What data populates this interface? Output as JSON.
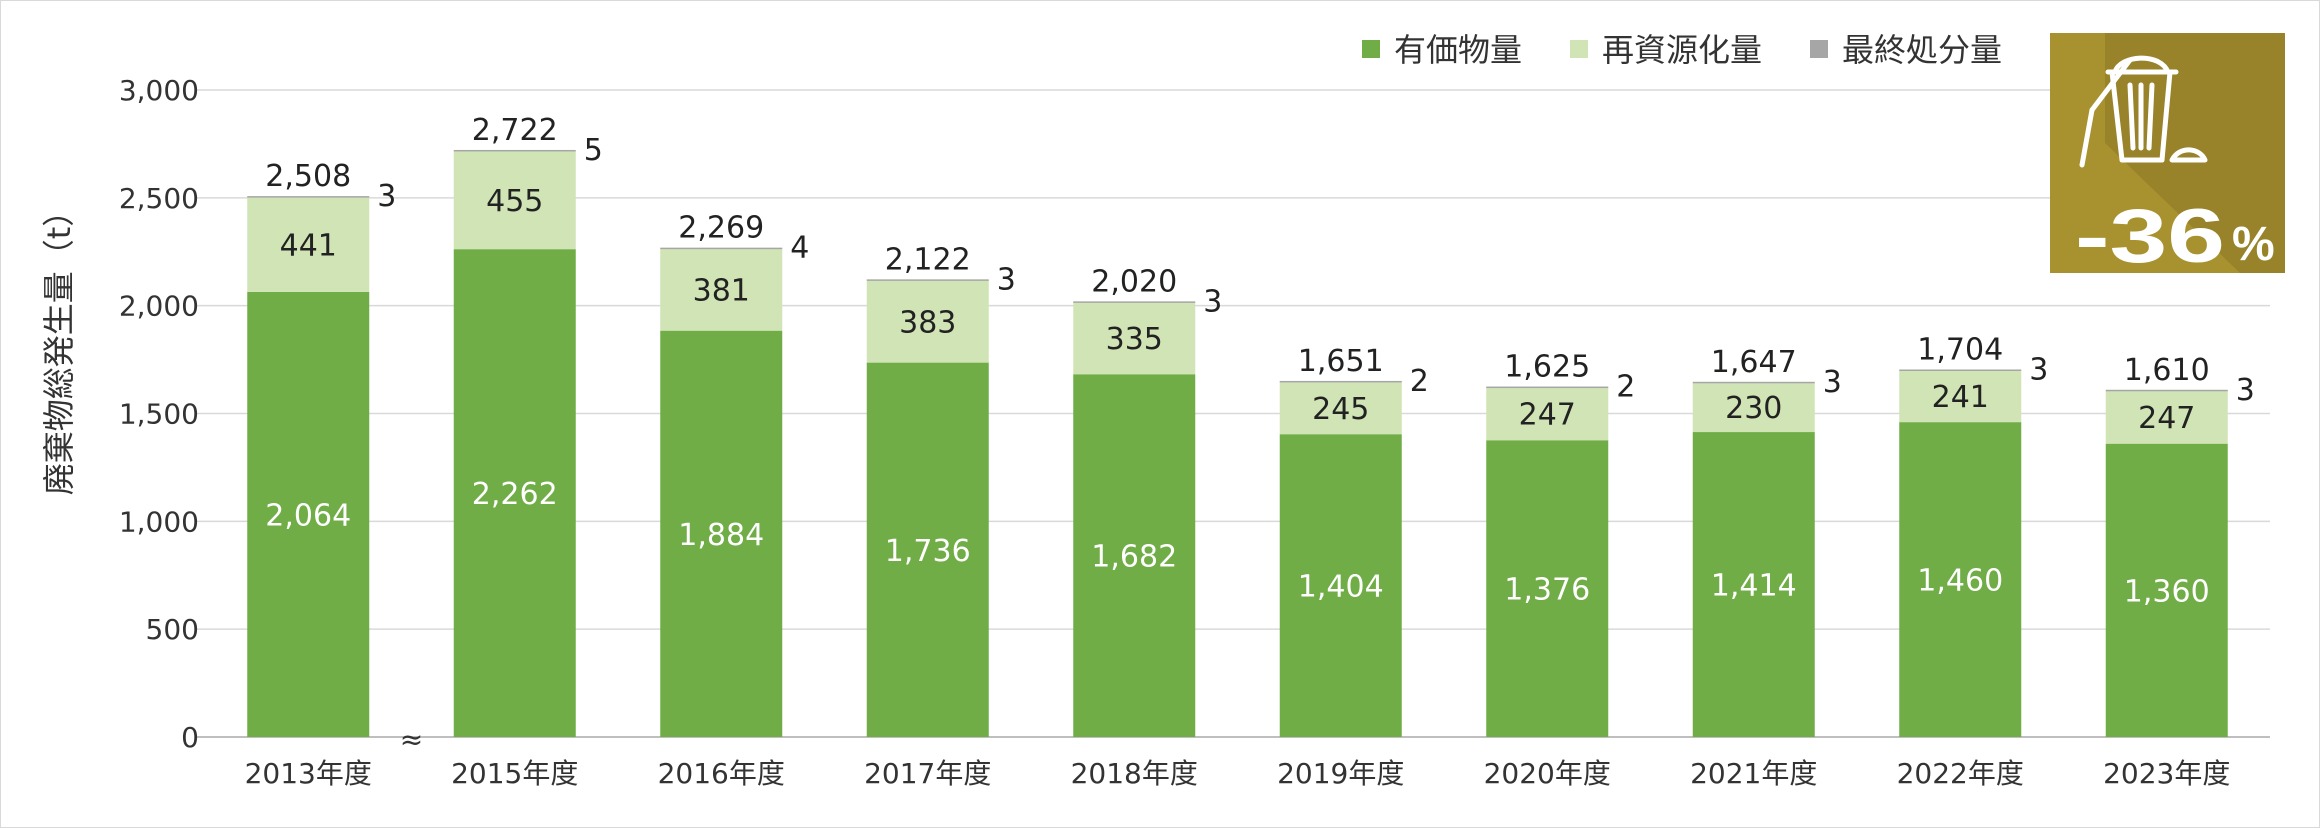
{
  "chart_data": {
    "type": "bar",
    "stacked": true,
    "ylabel": "廃棄物総発生量（t）",
    "ylim": [
      0,
      3000
    ],
    "yticks": [
      0,
      500,
      1000,
      1500,
      2000,
      2500,
      3000
    ],
    "ytick_labels": [
      "0",
      "500",
      "1,000",
      "1,500",
      "2,000",
      "2,500",
      "3,000"
    ],
    "categories": [
      "2013年度",
      "2015年度",
      "2016年度",
      "2017年度",
      "2018年度",
      "2019年度",
      "2020年度",
      "2021年度",
      "2022年度",
      "2023年度"
    ],
    "series": [
      {
        "name": "有価物量",
        "color": "#70ad47",
        "values": [
          2064,
          2262,
          1884,
          1736,
          1682,
          1404,
          1376,
          1414,
          1460,
          1360
        ],
        "labels": [
          "2,064",
          "2,262",
          "1,884",
          "1,736",
          "1,682",
          "1,404",
          "1,376",
          "1,414",
          "1,460",
          "1,360"
        ]
      },
      {
        "name": "再資源化量",
        "color": "#d1e4b5",
        "values": [
          441,
          455,
          381,
          383,
          335,
          245,
          247,
          230,
          241,
          247
        ],
        "labels": [
          "441",
          "455",
          "381",
          "383",
          "335",
          "245",
          "247",
          "230",
          "241",
          "247"
        ]
      },
      {
        "name": "最終処分量",
        "color": "#a6a6a6",
        "values": [
          3,
          5,
          4,
          3,
          3,
          2,
          2,
          3,
          3,
          3
        ],
        "labels": [
          "3",
          "5",
          "4",
          "3",
          "3",
          "2",
          "2",
          "3",
          "3",
          "3"
        ]
      }
    ],
    "totals": [
      "2,508",
      "2,722",
      "2,269",
      "2,122",
      "2,020",
      "1,651",
      "1,625",
      "1,647",
      "1,704",
      "1,610"
    ],
    "axis_break_symbol": "≈",
    "legend_position": "top-right",
    "grid": true
  },
  "badge": {
    "text": "-36",
    "unit": "%",
    "icon": "trash-bin-icon",
    "color": "#a8922f"
  }
}
